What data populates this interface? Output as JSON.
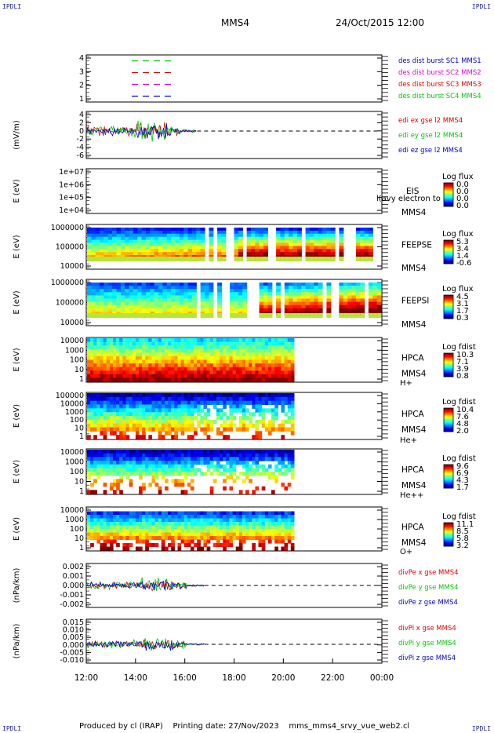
{
  "corners": {
    "tl": "IPDLI",
    "tr": "IPDLI",
    "bl": "IPDLI",
    "br": "IPDLI"
  },
  "header": {
    "spacecraft": "MMS4",
    "datetime": "24/Oct/2015 12:00"
  },
  "footer": {
    "produced": "Produced by cl (IRAP)",
    "printing": "Printing date: 27/Nov/2023",
    "file": "mms_mms4_srvy_vue_web2.cl"
  },
  "x_ticks": [
    "12:00",
    "14:00",
    "16:00",
    "18:00",
    "20:00",
    "22:00",
    "00:00"
  ],
  "colors": {
    "red": "#dd0000",
    "green": "#00c800",
    "blue": "#0000cc",
    "magenta": "#dd00dd",
    "black": "#000000"
  },
  "chart_data": [
    {
      "id": "p1",
      "type": "line",
      "ylim": [
        0.5,
        4.5
      ],
      "yticks": [
        "4",
        "3",
        "2",
        "1"
      ],
      "ylabel": "",
      "legend": [
        {
          "text": "des dist burst SC1 MMS1",
          "color": "#0000cc"
        },
        {
          "text": "des dist burst SC2 MMS2",
          "color": "#dd00dd"
        },
        {
          "text": "des dist burst SC3 MMS3",
          "color": "#dd0000"
        },
        {
          "text": "des dist burst SC4 MMS4",
          "color": "#00c800"
        }
      ]
    },
    {
      "id": "p2",
      "type": "line",
      "ylim": [
        -7,
        5
      ],
      "yticks": [
        "4",
        "2",
        "0",
        "-2",
        "-4",
        "-6"
      ],
      "ylabel": "(mV/m)",
      "legend": [
        {
          "text": "edi ex gse l2 MMS4",
          "color": "#dd0000"
        },
        {
          "text": "edi ey gse l2 MMS4",
          "color": "#00c800"
        },
        {
          "text": "edi ez gse l2 MMS4",
          "color": "#0000cc"
        }
      ]
    },
    {
      "id": "p3",
      "type": "heatmap",
      "yscale": "log",
      "yticks": [
        "1e+07",
        "1e+06",
        "1e+05",
        "1e+04"
      ],
      "ylabel": "E (eV)",
      "instrument": "EIS",
      "overlay": "l(avy electron to",
      "sc": "MMS4",
      "cbar_title": "Log flux",
      "cbar_ticks": [
        "0.0",
        "0.0",
        "0.0",
        "0.0"
      ],
      "species": ""
    },
    {
      "id": "p4",
      "type": "heatmap",
      "yscale": "log",
      "yticks": [
        "1000000",
        "100000",
        "10000"
      ],
      "ylabel": "E (eV)",
      "instrument": "FEEPSE",
      "overlay": "",
      "sc": "MMS4",
      "cbar_title": "Log flux",
      "cbar_ticks": [
        "5.3",
        "3.4",
        "1.4",
        "-0.6"
      ],
      "species": ""
    },
    {
      "id": "p5",
      "type": "heatmap",
      "yscale": "log",
      "yticks": [
        "1000000",
        "100000",
        "10000"
      ],
      "ylabel": "E (eV)",
      "instrument": "FEEPSI",
      "overlay": "",
      "sc": "MMS4",
      "cbar_title": "Log flux",
      "cbar_ticks": [
        "4.5",
        "3.1",
        "1.7",
        "0.3"
      ],
      "species": ""
    },
    {
      "id": "p6",
      "type": "heatmap",
      "yscale": "log",
      "yticks": [
        "10000",
        "1000",
        "100",
        "10",
        "1"
      ],
      "ylabel": "E (eV)",
      "instrument": "HPCA",
      "overlay": "",
      "sc": "MMS4",
      "cbar_title": "Log fdist",
      "cbar_ticks": [
        "10.3",
        "7.1",
        "3.9",
        "0.8"
      ],
      "species": "H+"
    },
    {
      "id": "p7",
      "type": "heatmap",
      "yscale": "log",
      "yticks": [
        "100000",
        "10000",
        "1000",
        "100",
        "10",
        "1"
      ],
      "ylabel": "E (eV)",
      "instrument": "HPCA",
      "overlay": "",
      "sc": "MMS4",
      "cbar_title": "Log fdist",
      "cbar_ticks": [
        "10.4",
        "7.6",
        "4.8",
        "2.0"
      ],
      "species": "He+"
    },
    {
      "id": "p8",
      "type": "heatmap",
      "yscale": "log",
      "yticks": [
        "10000",
        "1000",
        "100",
        "10",
        "1"
      ],
      "ylabel": "E (eV)",
      "instrument": "HPCA",
      "overlay": "",
      "sc": "MMS4",
      "cbar_title": "Log fdist",
      "cbar_ticks": [
        "9.6",
        "6.9",
        "4.3",
        "1.7"
      ],
      "species": "He++"
    },
    {
      "id": "p9",
      "type": "heatmap",
      "yscale": "log",
      "yticks": [
        "10000",
        "1000",
        "100",
        "10",
        "1"
      ],
      "ylabel": "E (eV)",
      "instrument": "HPCA",
      "overlay": "",
      "sc": "MMS4",
      "cbar_title": "Log fdist",
      "cbar_ticks": [
        "11.1",
        "8.5",
        "5.8",
        "3.2"
      ],
      "species": "O+"
    },
    {
      "id": "p10",
      "type": "line",
      "ylim": [
        -0.0025,
        0.0025
      ],
      "yticks": [
        "0.002",
        "0.001",
        "0.000",
        "-0.001",
        "-0.002"
      ],
      "ylabel": "(nPa/km)",
      "legend": [
        {
          "text": "divPe x gse MMS4",
          "color": "#dd0000"
        },
        {
          "text": "divPe y gse MMS4",
          "color": "#00c800"
        },
        {
          "text": "divPe z gse MMS4",
          "color": "#0000cc"
        }
      ]
    },
    {
      "id": "p11",
      "type": "line",
      "ylim": [
        -0.012,
        0.016
      ],
      "yticks": [
        "0.015",
        "0.010",
        "0.005",
        "0.000",
        "-0.005",
        "-0.010"
      ],
      "ylabel": "(nPa/km)",
      "legend": [
        {
          "text": "divPi x gse MMS4",
          "color": "#dd0000"
        },
        {
          "text": "divPi y gse MMS4",
          "color": "#00c800"
        },
        {
          "text": "divPi z gse MMS4",
          "color": "#0000cc"
        }
      ]
    }
  ]
}
